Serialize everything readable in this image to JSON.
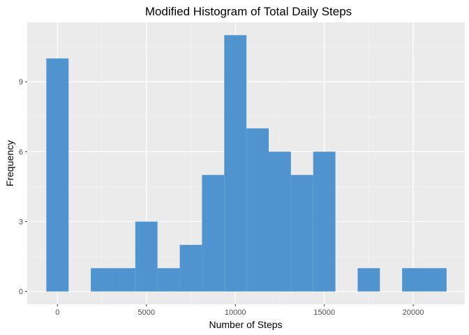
{
  "chart_data": {
    "type": "bar",
    "title": "Modified Histogram of Total Daily Steps",
    "xlabel": "Number of Steps",
    "ylabel": "Frequency",
    "bin_width": 1250,
    "bins": [
      {
        "start": -625,
        "end": 625,
        "count": 10
      },
      {
        "start": 625,
        "end": 1875,
        "count": 0
      },
      {
        "start": 1875,
        "end": 3125,
        "count": 1
      },
      {
        "start": 3125,
        "end": 4375,
        "count": 1
      },
      {
        "start": 4375,
        "end": 5625,
        "count": 3
      },
      {
        "start": 5625,
        "end": 6875,
        "count": 1
      },
      {
        "start": 6875,
        "end": 8125,
        "count": 2
      },
      {
        "start": 8125,
        "end": 9375,
        "count": 5
      },
      {
        "start": 9375,
        "end": 10625,
        "count": 11
      },
      {
        "start": 10625,
        "end": 11875,
        "count": 7
      },
      {
        "start": 11875,
        "end": 13125,
        "count": 6
      },
      {
        "start": 13125,
        "end": 14375,
        "count": 5
      },
      {
        "start": 14375,
        "end": 15625,
        "count": 6
      },
      {
        "start": 15625,
        "end": 16875,
        "count": 0
      },
      {
        "start": 16875,
        "end": 18125,
        "count": 1
      },
      {
        "start": 18125,
        "end": 19375,
        "count": 0
      },
      {
        "start": 19375,
        "end": 20625,
        "count": 1
      },
      {
        "start": 20625,
        "end": 21875,
        "count": 1
      }
    ],
    "xlim": [
      -1700,
      22900
    ],
    "ylim": [
      -0.55,
      11.55
    ],
    "x_ticks": [
      0,
      5000,
      10000,
      15000,
      20000
    ],
    "x_tick_labels": [
      "0",
      "5000",
      "10000",
      "15000",
      "20000"
    ],
    "y_ticks": [
      0,
      3,
      6,
      9
    ],
    "y_tick_labels": [
      "0",
      "3",
      "6",
      "9"
    ],
    "grid": true,
    "legend": "none",
    "colors": {
      "bar": "#4f94cf",
      "panel_background": "#ebebeb",
      "grid_major": "#ffffff",
      "grid_minor": "#f5f5f5"
    }
  }
}
